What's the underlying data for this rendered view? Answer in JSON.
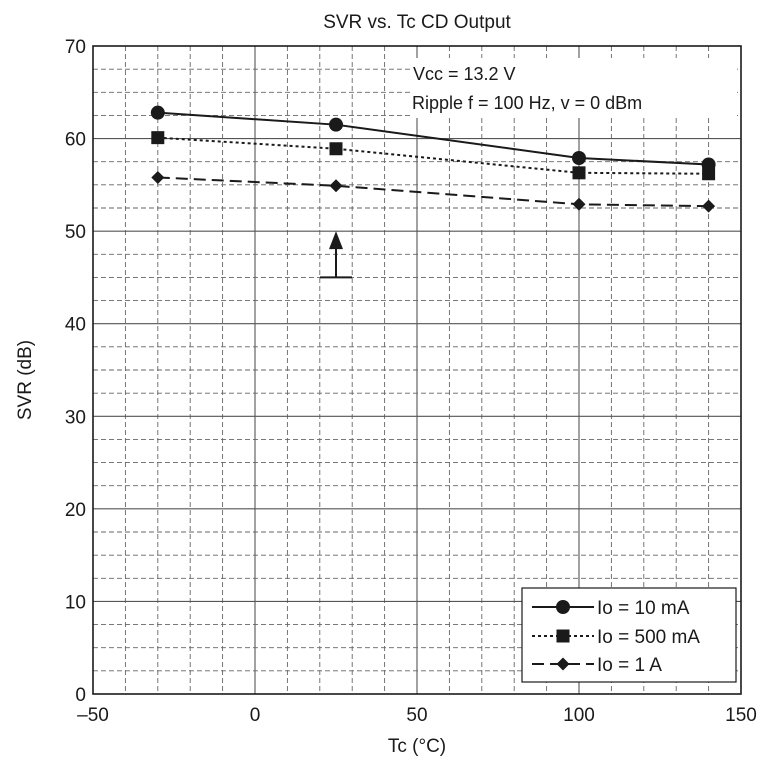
{
  "chart_data": {
    "type": "line",
    "title": "SVR vs. Tc   CD Output",
    "xlabel": "Tc   (°C)",
    "ylabel": "SVR   (dB)",
    "xlim": [
      -50,
      150
    ],
    "ylim": [
      0,
      70
    ],
    "x_ticks": [
      -50,
      0,
      50,
      100,
      150
    ],
    "x_tick_labels": [
      "–50",
      "0",
      "50",
      "100",
      "150"
    ],
    "y_ticks": [
      0,
      10,
      20,
      30,
      40,
      50,
      60,
      70
    ],
    "grid": true,
    "grid_minor": true,
    "legend_position": "bottom-right",
    "series": [
      {
        "name": "Io = 10 mA",
        "marker": "circle",
        "line": "solid",
        "x": [
          -30,
          25,
          100,
          140
        ],
        "y": [
          62.8,
          61.5,
          57.9,
          57.2
        ]
      },
      {
        "name": "Io = 500 mA",
        "marker": "square",
        "line": "dotted",
        "x": [
          -30,
          25,
          100,
          140
        ],
        "y": [
          60.1,
          58.9,
          56.3,
          56.2
        ]
      },
      {
        "name": "Io = 1 A",
        "marker": "diamond",
        "line": "dashed",
        "x": [
          -30,
          25,
          100,
          140
        ],
        "y": [
          55.8,
          54.9,
          52.9,
          52.7
        ]
      }
    ],
    "annotations": [
      {
        "text": "Vcc = 13.2 V"
      },
      {
        "text": "Ripple  f = 100 Hz, v = 0 dBm"
      }
    ],
    "markers": [
      {
        "type": "arrow-up",
        "x": 25,
        "y_from": 45,
        "y_to": 50
      }
    ]
  }
}
